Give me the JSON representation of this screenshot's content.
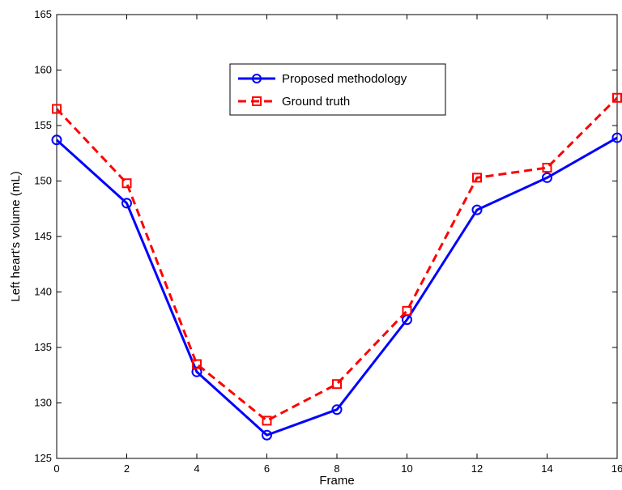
{
  "chart_data": {
    "type": "line",
    "title": "",
    "xlabel": "Frame",
    "ylabel": "Left heart's volume (mL)",
    "xlim": [
      0,
      16
    ],
    "ylim": [
      125,
      165
    ],
    "xticks": [
      0,
      2,
      4,
      6,
      8,
      10,
      12,
      14,
      16
    ],
    "yticks": [
      125,
      130,
      135,
      140,
      145,
      150,
      155,
      160,
      165
    ],
    "x": [
      0,
      2,
      4,
      6,
      8,
      10,
      12,
      14,
      16
    ],
    "series": [
      {
        "name": "Proposed methodology",
        "values": [
          153.7,
          148.0,
          132.8,
          127.1,
          129.4,
          137.5,
          147.4,
          150.3,
          153.9
        ],
        "color": "#0000ff",
        "line": "solid",
        "marker": "circle"
      },
      {
        "name": "Ground truth",
        "values": [
          156.5,
          149.8,
          133.5,
          128.4,
          131.7,
          138.3,
          150.3,
          151.2,
          157.5
        ],
        "color": "#ff0000",
        "line": "dashed",
        "marker": "square"
      }
    ],
    "grid": false,
    "legend": "top-center"
  }
}
